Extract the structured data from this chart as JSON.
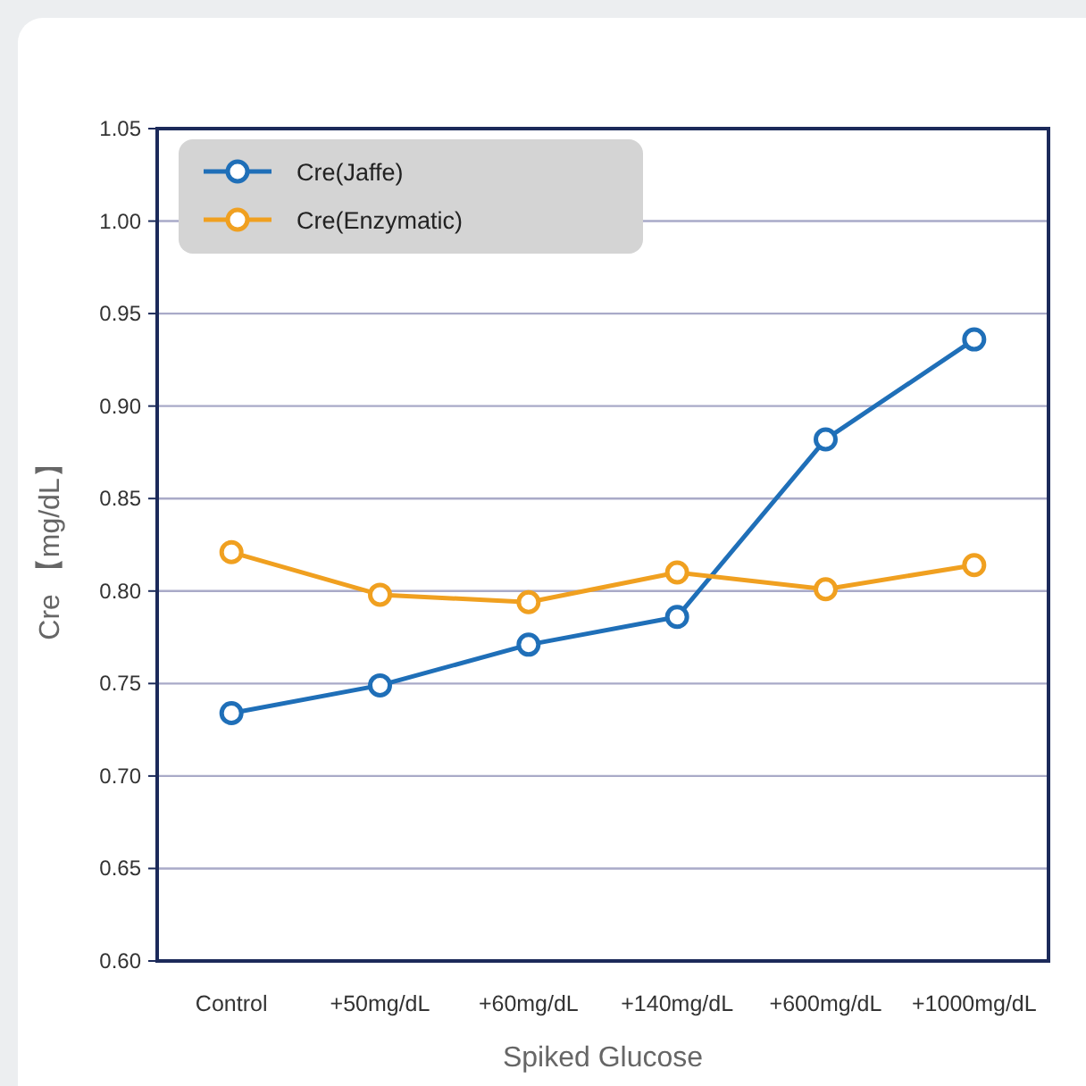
{
  "chart_data": {
    "type": "line",
    "xlabel": "Spiked Glucose",
    "ylabel": "Cre 【mg/dL】",
    "categories": [
      "Control",
      "+50mg/dL",
      "+60mg/dL",
      "+140mg/dL",
      "+600mg/dL",
      "+1000mg/dL"
    ],
    "series": [
      {
        "name": "Cre(Jaffe)",
        "color": "#1f6fb8",
        "values": [
          0.734,
          0.749,
          0.771,
          0.786,
          0.882,
          0.936
        ]
      },
      {
        "name": "Cre(Enzymatic)",
        "color": "#f0a020",
        "values": [
          0.821,
          0.798,
          0.794,
          0.81,
          0.801,
          0.814
        ]
      }
    ],
    "ylim": [
      0.6,
      1.05
    ],
    "yticks": [
      {
        "value": 0.6,
        "label": "0.60"
      },
      {
        "value": 0.65,
        "label": "0.65"
      },
      {
        "value": 0.7,
        "label": "0.70"
      },
      {
        "value": 0.75,
        "label": "0.75"
      },
      {
        "value": 0.8,
        "label": "0.80"
      },
      {
        "value": 0.85,
        "label": "0.85"
      },
      {
        "value": 0.9,
        "label": "0.90"
      },
      {
        "value": 0.95,
        "label": "0.95"
      },
      {
        "value": 1.0,
        "label": "1.00"
      },
      {
        "value": 1.05,
        "label": "1.05"
      }
    ],
    "grid": "y",
    "legend": "top left",
    "marker": "circle",
    "line_style": "solid"
  }
}
